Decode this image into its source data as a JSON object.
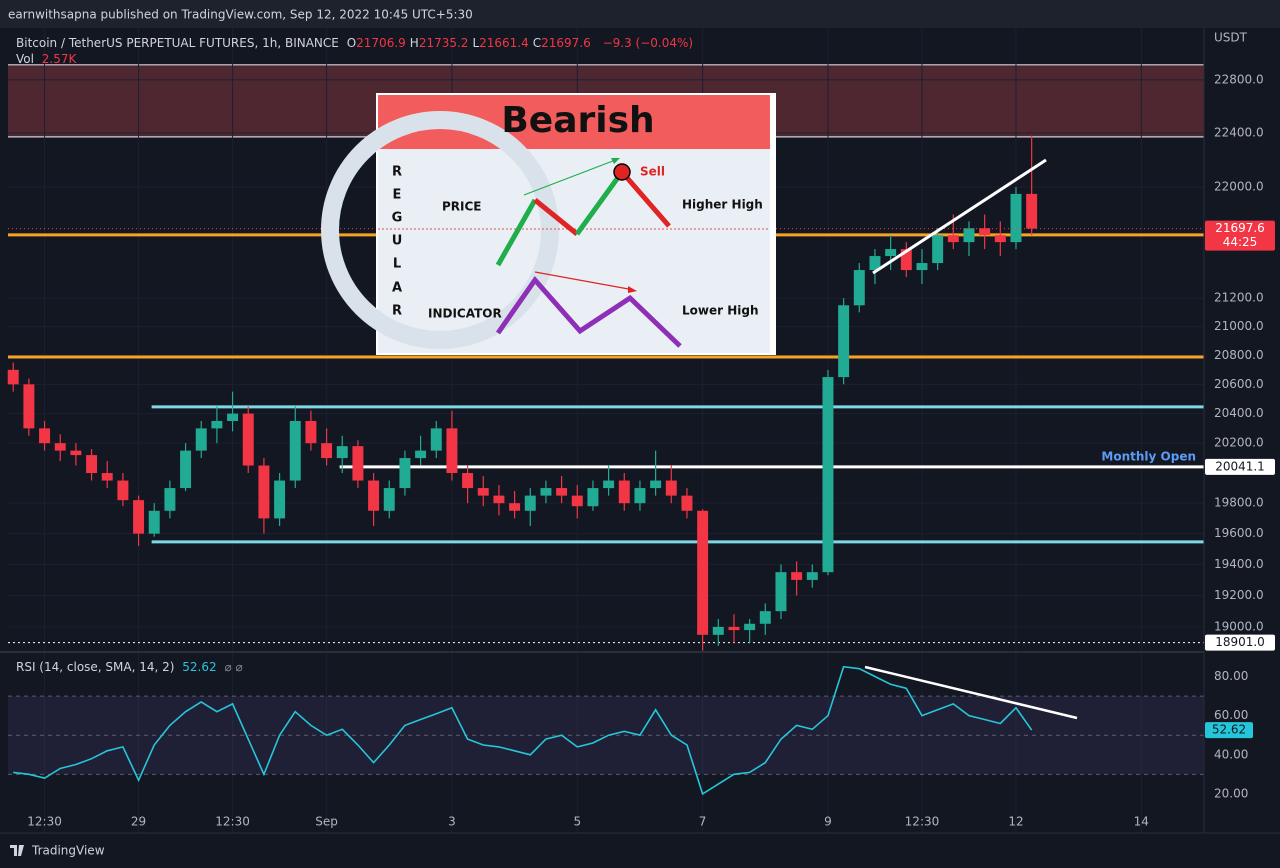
{
  "header": {
    "published": "earnwithsapna published on TradingView.com, Sep 12, 2022 10:45 UTC+5:30",
    "brand": "TradingView"
  },
  "inset": {
    "title": "Bearish",
    "side_letters": [
      "R",
      "E",
      "G",
      "U",
      "L",
      "A",
      "R"
    ],
    "price_label": "PRICE",
    "indicator_label": "INDICATOR",
    "signal": "Sell",
    "price_note": "Higher High",
    "indicator_note": "Lower High"
  },
  "chart_data": [
    {
      "type": "candlestick",
      "title": "Bitcoin / TetherUS PERPETUAL FUTURES, 1h, BINANCE",
      "ohlc": [
        {
          "label": "O",
          "value": 21706.9
        },
        {
          "label": "H",
          "value": 21735.2
        },
        {
          "label": "L",
          "value": 21661.4
        },
        {
          "label": "C",
          "value": 21697.6
        }
      ],
      "change": "−9.3 (−0.04%)",
      "volume_label": "Vol",
      "volume": "2.57K",
      "unit": "USDT",
      "countdown": "44:25",
      "up_color": "#22ab94",
      "down_color": "#f23645",
      "log_scale": true,
      "grid": true,
      "x": [
        -48,
        -42,
        -36,
        -30,
        -24,
        -18,
        -12,
        -6,
        0,
        6,
        12,
        18,
        24,
        30,
        36,
        42,
        48,
        54,
        60,
        66,
        72,
        78,
        84,
        90,
        96,
        102,
        108,
        114,
        120,
        126,
        132,
        138,
        144,
        150,
        156,
        162,
        168,
        174,
        180,
        186,
        192,
        198,
        204,
        210,
        216,
        222,
        228,
        234,
        240,
        246,
        252,
        258,
        264,
        270,
        276,
        282,
        288,
        294,
        300,
        306,
        312,
        318,
        324,
        330,
        336,
        342
      ],
      "open": [
        20700,
        20600,
        20300,
        20200,
        20150,
        20120,
        20000,
        19950,
        19820,
        19600,
        19750,
        19900,
        20150,
        20300,
        20350,
        20400,
        20050,
        19700,
        19950,
        20350,
        20200,
        20100,
        20180,
        19950,
        19750,
        19900,
        20100,
        20150,
        20300,
        20000,
        19900,
        19850,
        19800,
        19750,
        19850,
        19900,
        19850,
        19780,
        19900,
        19950,
        19800,
        19900,
        19950,
        19850,
        19750,
        18950,
        19000,
        18980,
        19020,
        19100,
        19350,
        19300,
        19350,
        20650,
        21150,
        21400,
        21500,
        21550,
        21400,
        21450,
        21650,
        21600,
        21700,
        21650,
        21600,
        21950
      ],
      "high": [
        20750,
        20640,
        20350,
        20260,
        20200,
        20160,
        20080,
        20000,
        19850,
        19800,
        19950,
        20200,
        20350,
        20450,
        20550,
        20450,
        20100,
        20000,
        20450,
        20420,
        20300,
        20250,
        20220,
        20000,
        19950,
        20150,
        20250,
        20350,
        20420,
        20050,
        19980,
        19920,
        19880,
        19900,
        19950,
        19980,
        19920,
        19950,
        20050,
        20000,
        19950,
        20150,
        20050,
        19900,
        19760,
        19050,
        19080,
        19050,
        19150,
        19400,
        19420,
        19400,
        20700,
        21200,
        21450,
        21550,
        21650,
        21600,
        21550,
        21700,
        21800,
        21750,
        21800,
        21750,
        22000,
        22380
      ],
      "low": [
        20550,
        20250,
        20150,
        20080,
        20050,
        19950,
        19900,
        19780,
        19520,
        19580,
        19700,
        19880,
        20100,
        20200,
        20280,
        20000,
        19600,
        19650,
        19900,
        20150,
        20050,
        20000,
        19900,
        19650,
        19700,
        19850,
        20050,
        20100,
        19950,
        19800,
        19780,
        19720,
        19700,
        19650,
        19800,
        19800,
        19700,
        19750,
        19850,
        19750,
        19750,
        19850,
        19800,
        19700,
        18850,
        18880,
        18900,
        18900,
        18950,
        19050,
        19200,
        19250,
        19330,
        20600,
        21100,
        21300,
        21400,
        21350,
        21300,
        21400,
        21550,
        21500,
        21550,
        21500,
        21550,
        21650
      ],
      "close": [
        20600,
        20300,
        20200,
        20150,
        20120,
        20000,
        19950,
        19820,
        19600,
        19750,
        19900,
        20150,
        20300,
        20350,
        20400,
        20050,
        19700,
        19950,
        20350,
        20200,
        20100,
        20180,
        19950,
        19750,
        19900,
        20100,
        20150,
        20300,
        20000,
        19900,
        19850,
        19800,
        19750,
        19850,
        19900,
        19850,
        19780,
        19900,
        19950,
        19800,
        19900,
        19950,
        19850,
        19750,
        18950,
        19000,
        18980,
        19020,
        19100,
        19350,
        19300,
        19350,
        20650,
        21150,
        21400,
        21500,
        21550,
        21400,
        21450,
        21650,
        21600,
        21700,
        21650,
        21600,
        21950,
        21697.6
      ],
      "xlim": [
        -50,
        408
      ],
      "xticks": [
        {
          "value": -36,
          "label": "12:30"
        },
        {
          "value": 0,
          "label": "29"
        },
        {
          "value": 36,
          "label": "12:30"
        },
        {
          "value": 72,
          "label": "Sep"
        },
        {
          "value": 120,
          "label": "3"
        },
        {
          "value": 168,
          "label": "5"
        },
        {
          "value": 216,
          "label": "7"
        },
        {
          "value": 264,
          "label": "9"
        },
        {
          "value": 300,
          "label": "12:30"
        },
        {
          "value": 336,
          "label": "12"
        },
        {
          "value": 384,
          "label": "14"
        }
      ],
      "ylim": [
        18867,
        23198
      ],
      "yticks": [
        {
          "value": 22800,
          "label": "22800.0"
        },
        {
          "value": 22400,
          "label": "22400.0"
        },
        {
          "value": 22000,
          "label": "22000.0"
        },
        {
          "value": 21200,
          "label": "21200.0"
        },
        {
          "value": 21000,
          "label": "21000.0"
        },
        {
          "value": 20800,
          "label": "20800.0"
        },
        {
          "value": 20600,
          "label": "20600.0"
        },
        {
          "value": 20400,
          "label": "20400.0"
        },
        {
          "value": 20200,
          "label": "20200.0"
        },
        {
          "value": 19800,
          "label": "19800.0"
        },
        {
          "value": 19600,
          "label": "19600.0"
        },
        {
          "value": 19400,
          "label": "19400.0"
        },
        {
          "value": 19200,
          "label": "19200.0"
        },
        {
          "value": 19000,
          "label": "19000.0"
        }
      ],
      "zone": {
        "range": [
          22371,
          22915
        ],
        "color": "#5a2a33"
      },
      "levels": [
        {
          "value": 21652,
          "color": "#f7a325",
          "start": -50
        },
        {
          "value": 20789,
          "color": "#f7a325",
          "start": -50
        },
        {
          "value": 20446,
          "color": "#7fd8e6",
          "start": 5
        },
        {
          "value": 19546,
          "color": "#7fd8e6",
          "start": 5
        },
        {
          "value": 20041.1,
          "color": "#ffffff",
          "start": 77,
          "label": "Monthly Open"
        }
      ],
      "low_marker": {
        "value": 18901,
        "label": "18901.0"
      }
    },
    {
      "type": "line",
      "title": "RSI (14, close, SMA, 14, 2)",
      "color": "#26c6da",
      "x": [
        -48,
        -42,
        -36,
        -30,
        -24,
        -18,
        -12,
        -6,
        0,
        6,
        12,
        18,
        24,
        30,
        36,
        42,
        48,
        54,
        60,
        66,
        72,
        78,
        84,
        90,
        96,
        102,
        108,
        114,
        120,
        126,
        132,
        138,
        144,
        150,
        156,
        162,
        168,
        174,
        180,
        186,
        192,
        198,
        204,
        210,
        216,
        222,
        228,
        234,
        240,
        246,
        252,
        258,
        264,
        270,
        276,
        282,
        288,
        294,
        300,
        306,
        312,
        318,
        324,
        330,
        336,
        342
      ],
      "values": [
        31,
        30,
        28,
        33,
        35,
        38,
        42,
        44,
        27,
        45,
        55,
        62,
        67,
        62,
        66,
        48,
        30,
        50,
        62,
        55,
        50,
        53,
        45,
        36,
        45,
        55,
        58,
        61,
        64,
        48,
        45,
        44,
        42,
        40,
        48,
        50,
        44,
        46,
        50,
        52,
        50,
        63,
        50,
        45,
        20,
        25,
        30,
        31,
        36,
        48,
        55,
        53,
        60,
        85,
        84,
        80,
        76,
        74,
        60,
        63,
        66,
        60,
        58,
        56,
        64,
        52.62
      ],
      "xlim": [
        -50,
        408
      ],
      "ylim": [
        0,
        91
      ],
      "yticks": [
        {
          "value": 80,
          "label": "80.00"
        },
        {
          "value": 60,
          "label": "60.00"
        },
        {
          "value": 40,
          "label": "40.00"
        },
        {
          "value": 20,
          "label": "20.00"
        }
      ],
      "band": [
        30,
        70
      ],
      "levels": [
        70,
        50,
        30
      ]
    }
  ]
}
